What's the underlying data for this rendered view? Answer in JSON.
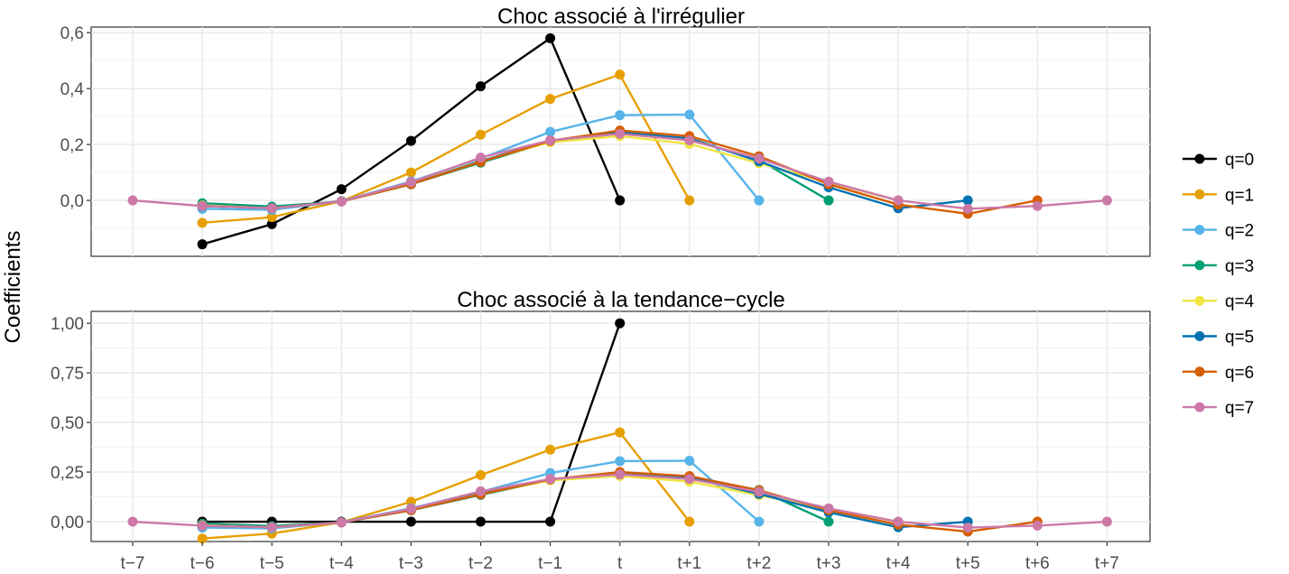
{
  "y_label": "Coefficients",
  "chart_data": [
    {
      "type": "line",
      "title": "Choc associé à l'irrégulier",
      "x": [
        "t−7",
        "t−6",
        "t−5",
        "t−4",
        "t−3",
        "t−2",
        "t−1",
        "t",
        "t+1",
        "t+2",
        "t+3",
        "t+4",
        "t+5",
        "t+6",
        "t+7"
      ],
      "ylim": [
        -0.2,
        0.62
      ],
      "yticks": [
        0.0,
        0.2,
        0.4,
        0.6
      ],
      "ytick_labels": [
        "0,0",
        "0,2",
        "0,4",
        "0,6"
      ],
      "series": [
        {
          "name": "q=0",
          "values": [
            null,
            -0.157,
            -0.085,
            0.04,
            0.213,
            0.408,
            0.58,
            0.0,
            null,
            null,
            null,
            null,
            null,
            null,
            null
          ]
        },
        {
          "name": "q=1",
          "values": [
            null,
            -0.08,
            -0.06,
            -0.003,
            0.1,
            0.235,
            0.363,
            0.45,
            0.0,
            null,
            null,
            null,
            null,
            null,
            null
          ]
        },
        {
          "name": "q=2",
          "values": [
            null,
            -0.03,
            -0.034,
            -0.003,
            0.068,
            0.15,
            0.245,
            0.305,
            0.307,
            0.0,
            null,
            null,
            null,
            null,
            null
          ]
        },
        {
          "name": "q=3",
          "values": [
            null,
            -0.01,
            -0.022,
            -0.004,
            0.058,
            0.135,
            0.21,
            0.24,
            0.218,
            0.145,
            0.0,
            null,
            null,
            null,
            null
          ]
        },
        {
          "name": "q=4",
          "values": [
            null,
            -0.018,
            -0.028,
            -0.004,
            0.06,
            0.14,
            0.208,
            0.23,
            0.202,
            0.133,
            0.065,
            0.0,
            null,
            null,
            null
          ]
        },
        {
          "name": "q=5",
          "values": [
            null,
            -0.02,
            -0.028,
            -0.003,
            0.058,
            0.14,
            0.214,
            0.243,
            0.222,
            0.14,
            0.047,
            -0.028,
            0.0,
            null,
            null
          ]
        },
        {
          "name": "q=6",
          "values": [
            null,
            -0.02,
            -0.028,
            -0.004,
            0.058,
            0.138,
            0.213,
            0.25,
            0.23,
            0.158,
            0.058,
            -0.015,
            -0.048,
            0.0,
            null
          ]
        },
        {
          "name": "q=7",
          "values": [
            0.0,
            -0.02,
            -0.028,
            -0.004,
            0.065,
            0.153,
            0.215,
            0.238,
            0.215,
            0.15,
            0.067,
            0.0,
            -0.03,
            -0.02,
            0.0
          ]
        }
      ]
    },
    {
      "type": "line",
      "title": "Choc associé à la tendance−cycle",
      "x": [
        "t−7",
        "t−6",
        "t−5",
        "t−4",
        "t−3",
        "t−2",
        "t−1",
        "t",
        "t+1",
        "t+2",
        "t+3",
        "t+4",
        "t+5",
        "t+6",
        "t+7"
      ],
      "ylim": [
        -0.1,
        1.06
      ],
      "yticks": [
        0.0,
        0.25,
        0.5,
        0.75,
        1.0
      ],
      "ytick_labels": [
        "0,00",
        "0,25",
        "0,50",
        "0,75",
        "1,00"
      ],
      "series": [
        {
          "name": "q=0",
          "values": [
            null,
            0.0,
            0.0,
            0.0,
            0.0,
            0.0,
            0.0,
            1.0,
            null,
            null,
            null,
            null,
            null,
            null,
            null
          ]
        },
        {
          "name": "q=1",
          "values": [
            null,
            -0.085,
            -0.06,
            -0.003,
            0.1,
            0.235,
            0.363,
            0.45,
            0.0,
            null,
            null,
            null,
            null,
            null,
            null
          ]
        },
        {
          "name": "q=2",
          "values": [
            null,
            -0.03,
            -0.034,
            -0.003,
            0.068,
            0.15,
            0.245,
            0.305,
            0.307,
            0.0,
            null,
            null,
            null,
            null,
            null
          ]
        },
        {
          "name": "q=3",
          "values": [
            null,
            -0.01,
            -0.022,
            -0.004,
            0.058,
            0.135,
            0.21,
            0.24,
            0.218,
            0.16,
            0.0,
            null,
            null,
            null,
            null
          ]
        },
        {
          "name": "q=4",
          "values": [
            null,
            -0.018,
            -0.028,
            -0.004,
            0.06,
            0.14,
            0.208,
            0.23,
            0.202,
            0.133,
            0.065,
            0.0,
            null,
            null,
            null
          ]
        },
        {
          "name": "q=5",
          "values": [
            null,
            -0.02,
            -0.028,
            -0.003,
            0.058,
            0.14,
            0.214,
            0.243,
            0.222,
            0.14,
            0.047,
            -0.028,
            0.0,
            null,
            null
          ]
        },
        {
          "name": "q=6",
          "values": [
            null,
            -0.02,
            -0.028,
            -0.004,
            0.058,
            0.138,
            0.213,
            0.25,
            0.23,
            0.158,
            0.058,
            -0.015,
            -0.05,
            0.0,
            null
          ]
        },
        {
          "name": "q=7",
          "values": [
            0.0,
            -0.02,
            -0.028,
            -0.004,
            0.065,
            0.153,
            0.215,
            0.238,
            0.215,
            0.15,
            0.067,
            0.0,
            -0.03,
            -0.02,
            0.0
          ]
        }
      ]
    }
  ],
  "legend": [
    {
      "label": "q=0",
      "color": "#000000"
    },
    {
      "label": "q=1",
      "color": "#E69F00"
    },
    {
      "label": "q=2",
      "color": "#56B4E9"
    },
    {
      "label": "q=3",
      "color": "#009E73"
    },
    {
      "label": "q=4",
      "color": "#F0E442"
    },
    {
      "label": "q=5",
      "color": "#0072B2"
    },
    {
      "label": "q=6",
      "color": "#D55E00"
    },
    {
      "label": "q=7",
      "color": "#CC79A7"
    }
  ]
}
